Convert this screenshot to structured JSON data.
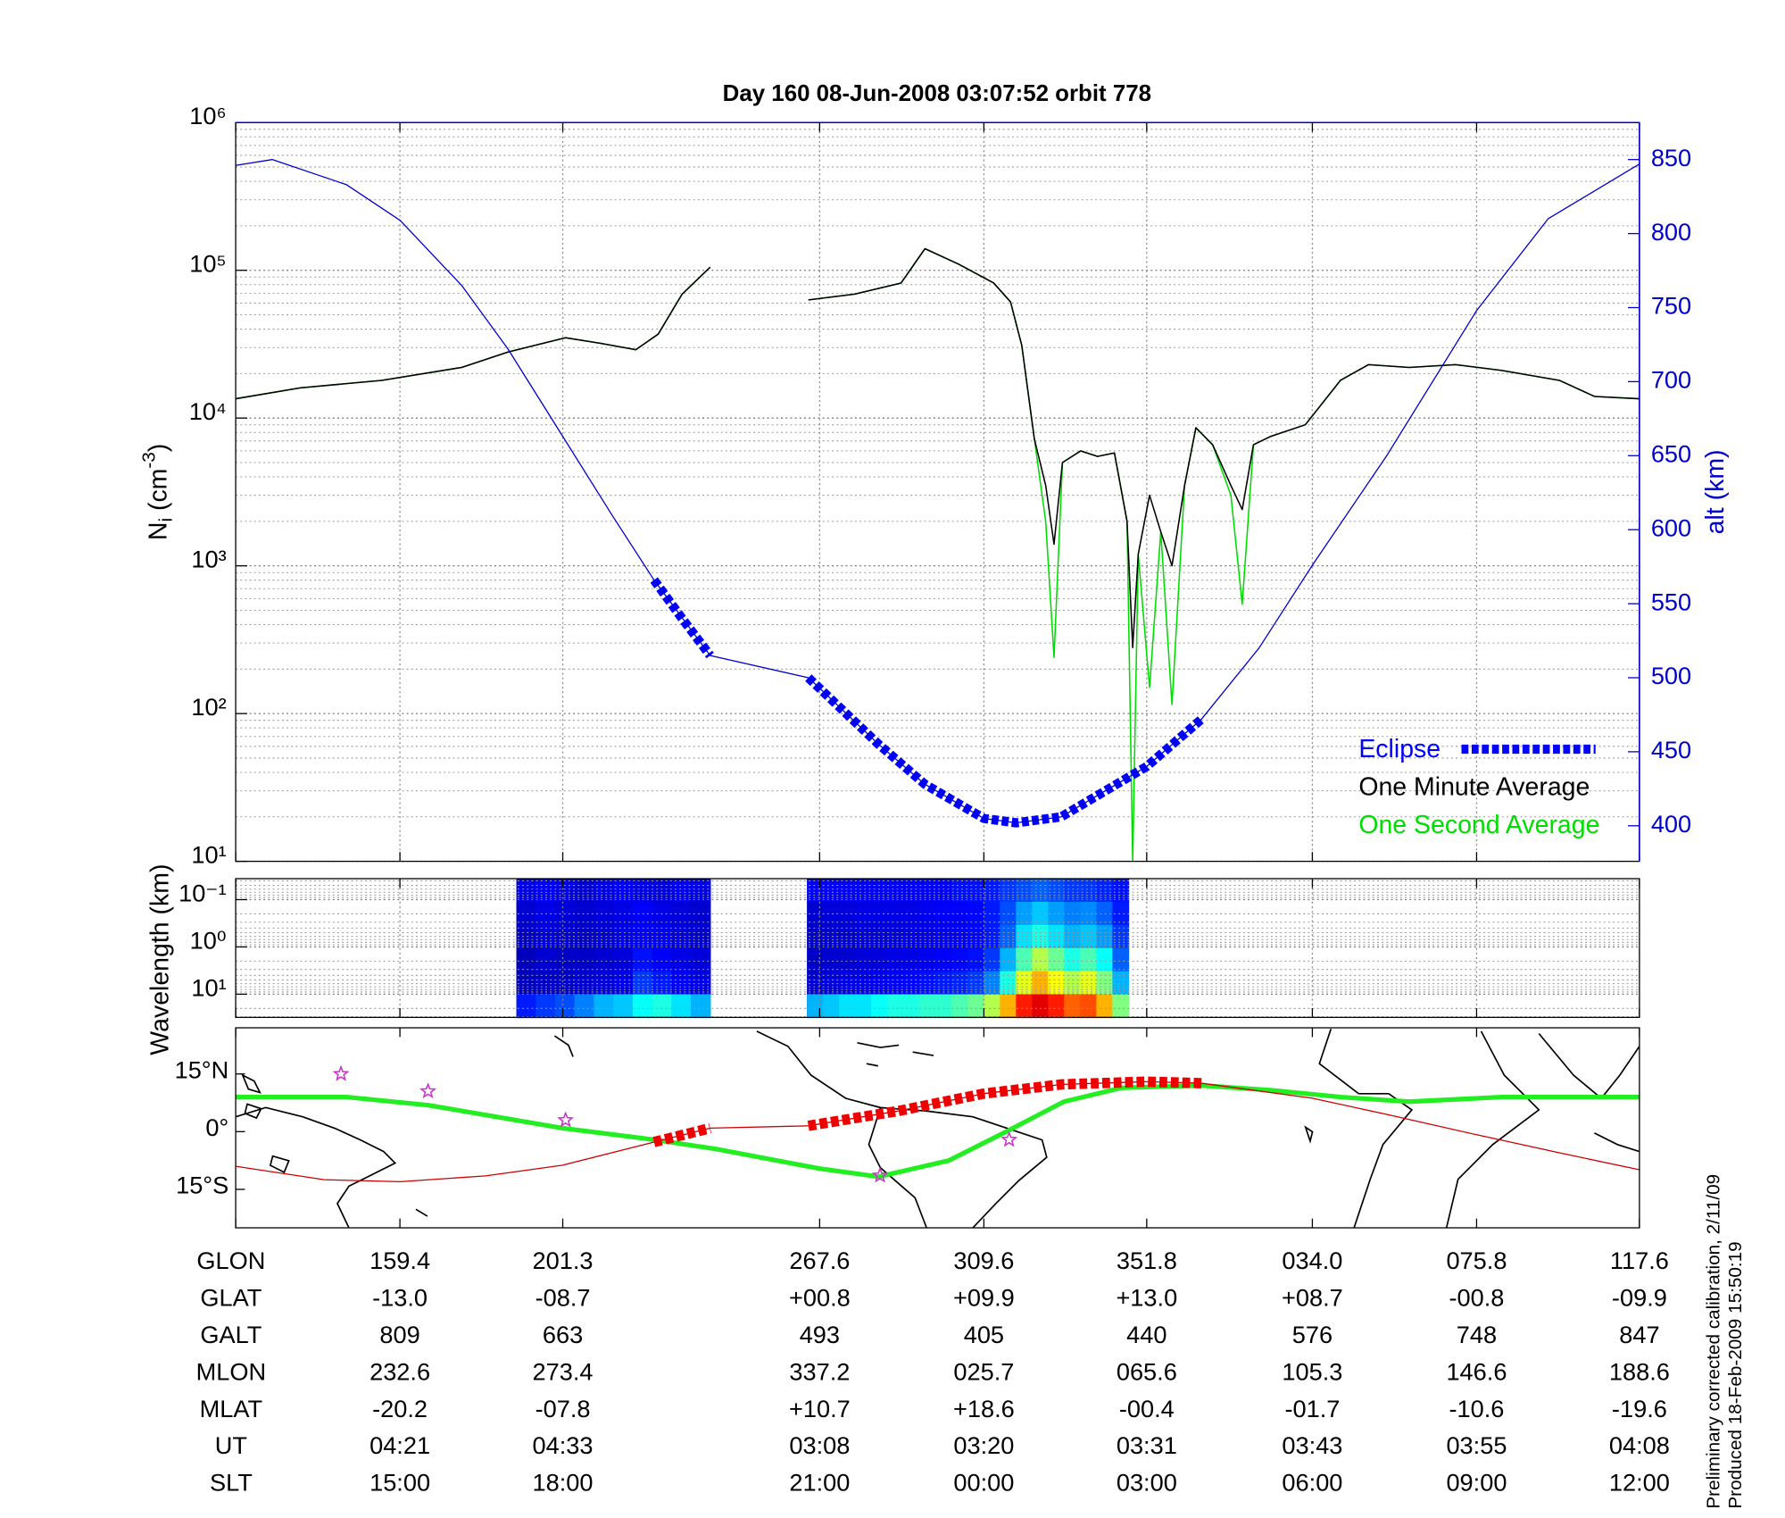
{
  "chart_data": [
    {
      "type": "line",
      "title": "Day 160  08-Jun-2008 03:07:52   orbit 778",
      "ylabel": {
        "base": "N",
        "sub": "i",
        "unit": " (cm",
        "sup": "-3",
        "close": ")"
      },
      "y2label": "alt (km)",
      "log": true,
      "ylim": [
        10,
        1000000
      ],
      "yticks": [
        {
          "value": 10,
          "label": "10¹"
        },
        {
          "value": 100,
          "label": "10²"
        },
        {
          "value": 1000,
          "label": "10³"
        },
        {
          "value": 10000,
          "label": "10⁴"
        },
        {
          "value": 100000,
          "label": "10⁵"
        },
        {
          "value": 1000000,
          "label": "10⁶"
        }
      ],
      "yminor": [
        20,
        30,
        40,
        50,
        60,
        70,
        80,
        90,
        200,
        300,
        400,
        500,
        600,
        700,
        800,
        900,
        2000,
        3000,
        4000,
        5000,
        6000,
        7000,
        8000,
        9000,
        20000,
        30000,
        40000,
        50000,
        60000,
        70000,
        80000,
        90000,
        200000,
        300000,
        400000,
        500000,
        600000,
        700000,
        800000,
        900000
      ],
      "y2lim": [
        376,
        875
      ],
      "y2ticks": [
        400,
        450,
        500,
        550,
        600,
        650,
        700,
        750,
        800,
        850
      ],
      "y2color": "#0000cc",
      "xlim": [
        0,
        100
      ],
      "xticks": [
        0,
        11.7,
        23.3,
        41.6,
        53.3,
        64.9,
        76.7,
        88.4,
        100
      ],
      "grid": true,
      "legend": "lower right",
      "series": [
        {
          "color": "#0000cc",
          "axis": "y2",
          "width": 1,
          "x": [
            0,
            2.6,
            7.9,
            11.7,
            16.1,
            19.4,
            23.3,
            26.8,
            29.8,
            33.8,
            40.8,
            41.6,
            45.8,
            49.1,
            53.3,
            55.6,
            58.8,
            64.9,
            68.8,
            72.9,
            76.7,
            82.0,
            88.4,
            93.5,
            100
          ],
          "values": [
            846,
            850,
            833,
            809,
            765,
            722,
            663,
            610,
            566,
            515,
            500,
            493,
            455,
            428,
            405,
            402,
            406,
            440,
            472,
            520,
            576,
            650,
            748,
            810,
            847
          ]
        },
        {
          "name": "Eclipse",
          "color": "#0000ff",
          "axis": "y2",
          "width": 8,
          "style": "dashed",
          "x": [
            29.8,
            31.8,
            33.8,
            37,
            40.8,
            45.8,
            49.1,
            53.3,
            55.6,
            58.8,
            64.9,
            68.8
          ],
          "values": [
            566,
            540,
            515,
            null,
            500,
            455,
            428,
            405,
            402,
            406,
            440,
            472
          ]
        },
        {
          "name": "One Minute Average",
          "color": "#000000",
          "width": 1.2,
          "x": [
            0,
            4.6,
            10.4,
            16.1,
            19.4,
            23.5,
            26.0,
            28.5,
            30.1,
            31.8,
            33.8,
            36,
            40.8,
            44.1,
            47.4,
            49.1,
            51.5,
            54.0,
            55.2,
            56.0,
            56.9,
            57.7,
            58.3,
            58.9,
            60.2,
            61.4,
            62.6,
            63.5,
            63.9,
            64.3,
            65.1,
            65.9,
            66.7,
            67.6,
            68.4,
            69.6,
            70.9,
            71.7,
            72.5,
            73.7,
            76.2,
            78.7,
            80.7,
            83.6,
            86.9,
            90.2,
            94.3,
            96.8,
            100
          ],
          "values": [
            13500,
            16000,
            18000,
            22000,
            28000,
            35000,
            32000,
            29000,
            37000,
            69000,
            105000,
            null,
            63000,
            69000,
            82000,
            140000,
            110000,
            82000,
            61000,
            31000,
            7200,
            3500,
            1400,
            5000,
            6000,
            5500,
            5800,
            2000,
            280,
            1200,
            3000,
            1700,
            1000,
            3500,
            8600,
            6600,
            3500,
            2400,
            6600,
            7500,
            9000,
            18000,
            23000,
            22000,
            23000,
            21000,
            18000,
            14000,
            13500
          ]
        },
        {
          "name": "One Second Average",
          "color": "#00dd00",
          "width": 1.2,
          "x": [
            0,
            4.6,
            10.4,
            16.1,
            19.4,
            23.5,
            26.0,
            28.5,
            30.1,
            31.8,
            33.8,
            36,
            40.8,
            44.1,
            47.4,
            49.1,
            51.5,
            54.0,
            55.2,
            56.0,
            56.9,
            57.7,
            58.3,
            58.9,
            60.2,
            61.4,
            62.6,
            63.5,
            63.9,
            64.3,
            65.1,
            65.9,
            66.7,
            67.6,
            68.4,
            69.6,
            70.9,
            71.7,
            72.5,
            73.7,
            76.2,
            78.7,
            80.7,
            83.6,
            86.9,
            90.2,
            94.3,
            96.8,
            100
          ],
          "values": [
            13500,
            16000,
            18000,
            22000,
            28000,
            35000,
            32000,
            29000,
            37000,
            69000,
            105000,
            null,
            63000,
            69000,
            82000,
            140000,
            110000,
            82000,
            61000,
            31000,
            7200,
            2000,
            240,
            5000,
            6000,
            5500,
            5800,
            2000,
            10,
            1200,
            150,
            1700,
            115,
            3500,
            8600,
            6600,
            3000,
            550,
            6600,
            7500,
            9000,
            18000,
            23000,
            22000,
            23000,
            21000,
            18000,
            14000,
            13500
          ]
        }
      ]
    },
    {
      "type": "heatmap",
      "ylabel": "Wavelength (km)",
      "log": true,
      "inverted": true,
      "ylim": [
        0.036,
        31
      ],
      "yticks": [
        {
          "value": 0.1,
          "label": "10⁻¹"
        },
        {
          "value": 1,
          "label": "10⁰"
        },
        {
          "value": 10,
          "label": "10¹"
        }
      ],
      "yminor": [
        0.04,
        0.05,
        0.06,
        0.07,
        0.08,
        0.09,
        0.2,
        0.3,
        0.4,
        0.5,
        0.6,
        0.7,
        0.8,
        0.9,
        2,
        3,
        4,
        5,
        6,
        7,
        8,
        9,
        20,
        30
      ],
      "xlim": [
        0,
        100
      ],
      "xticks": [
        0,
        11.7,
        23.3,
        41.6,
        53.3,
        64.9,
        76.7,
        88.4,
        100
      ],
      "grid": true,
      "blocks": [
        {
          "x": [
            20.0,
            33.8
          ],
          "intensity": [
            [
              0.1,
              0.12,
              0.1,
              0.08,
              0.1,
              0.12,
              0.1,
              0.09,
              0.11,
              0.1
            ],
            [
              0.08,
              0.1,
              0.09,
              0.08,
              0.09,
              0.1,
              0.12,
              0.1,
              0.09,
              0.08
            ],
            [
              0.07,
              0.09,
              0.08,
              0.07,
              0.08,
              0.1,
              0.12,
              0.11,
              0.09,
              0.08
            ],
            [
              0.06,
              0.08,
              0.07,
              0.07,
              0.08,
              0.09,
              0.14,
              0.12,
              0.1,
              0.09
            ],
            [
              0.06,
              0.07,
              0.07,
              0.08,
              0.09,
              0.1,
              0.18,
              0.15,
              0.12,
              0.1
            ],
            [
              0.15,
              0.18,
              0.2,
              0.25,
              0.3,
              0.32,
              0.38,
              0.4,
              0.35,
              0.3
            ]
          ]
        },
        {
          "x": [
            40.7,
            63.6
          ],
          "intensity": [
            [
              0.12,
              0.12,
              0.12,
              0.12,
              0.12,
              0.12,
              0.12,
              0.12,
              0.12,
              0.14,
              0.14,
              0.15,
              0.18,
              0.2,
              0.22,
              0.2,
              0.18,
              0.18,
              0.16,
              0.14
            ],
            [
              0.08,
              0.09,
              0.09,
              0.1,
              0.1,
              0.1,
              0.1,
              0.11,
              0.12,
              0.12,
              0.13,
              0.15,
              0.2,
              0.28,
              0.32,
              0.28,
              0.25,
              0.26,
              0.22,
              0.15
            ],
            [
              0.07,
              0.08,
              0.08,
              0.09,
              0.09,
              0.09,
              0.1,
              0.1,
              0.11,
              0.12,
              0.13,
              0.15,
              0.22,
              0.35,
              0.4,
              0.35,
              0.3,
              0.32,
              0.28,
              0.18
            ],
            [
              0.07,
              0.08,
              0.08,
              0.09,
              0.09,
              0.1,
              0.1,
              0.11,
              0.12,
              0.13,
              0.14,
              0.18,
              0.3,
              0.45,
              0.55,
              0.48,
              0.4,
              0.45,
              0.38,
              0.22
            ],
            [
              0.08,
              0.09,
              0.1,
              0.1,
              0.11,
              0.12,
              0.13,
              0.14,
              0.15,
              0.16,
              0.18,
              0.25,
              0.4,
              0.6,
              0.7,
              0.62,
              0.55,
              0.6,
              0.5,
              0.3
            ],
            [
              0.3,
              0.32,
              0.35,
              0.35,
              0.38,
              0.4,
              0.4,
              0.42,
              0.42,
              0.45,
              0.48,
              0.55,
              0.7,
              0.85,
              0.9,
              0.85,
              0.78,
              0.8,
              0.7,
              0.5
            ]
          ]
        }
      ]
    },
    {
      "type": "map",
      "ylim": [
        -25,
        27
      ],
      "yticks": [
        {
          "value": 15,
          "label": "15°N"
        },
        {
          "value": 0,
          "label": "0°"
        },
        {
          "value": -15,
          "label": "15°S"
        }
      ],
      "xlim": [
        0,
        100
      ],
      "xticks": [
        0,
        11.7,
        23.3,
        41.6,
        53.3,
        64.9,
        76.7,
        88.4,
        100
      ],
      "series": [
        {
          "color": "#22ee22",
          "width": 4,
          "x": [
            0,
            7.9,
            13.7,
            23.3,
            29.8,
            34.2,
            41.6,
            45.8,
            50.8,
            54.9,
            59.0,
            63.1,
            68.8,
            73.7,
            78.7,
            83.6,
            90.2,
            100
          ],
          "values": [
            9,
            9,
            6.9,
            0.9,
            -2.1,
            -4.5,
            -9.6,
            -11.7,
            -7.5,
            0,
            7.8,
            11.4,
            12,
            10.8,
            9,
            7.8,
            9,
            9
          ]
        },
        {
          "color": "#cc0000",
          "width": 1,
          "x": [
            0,
            6.3,
            11.7,
            17.8,
            23.3,
            29.8,
            33.8,
            40.8,
            47.4,
            53.3,
            58.9,
            64.9,
            68.8,
            76.7,
            82.0,
            88.4,
            94.3,
            100
          ],
          "values": [
            -9,
            -12.5,
            -13,
            -11.5,
            -8.7,
            -2.7,
            0.9,
            1.5,
            5.5,
            9.9,
            12.3,
            13,
            12.6,
            8.7,
            4.5,
            -0.8,
            -5.5,
            -9.9
          ]
        },
        {
          "color": "#ee0000",
          "width": 9,
          "style": "dashed",
          "x": [
            29.8,
            31.8,
            33.8,
            37,
            40.8,
            47.4,
            53.3,
            58.9,
            64.9,
            68.8
          ],
          "values": [
            -2.7,
            -0.9,
            0.9,
            null,
            1.5,
            5.5,
            9.9,
            12.3,
            13,
            12.6
          ]
        }
      ],
      "points": {
        "color": "#cc33cc",
        "x": [
          7.5,
          13.7,
          23.5,
          45.9,
          55.1
        ],
        "values": [
          15,
          10.5,
          3,
          -11.4,
          -2.1
        ]
      }
    }
  ],
  "table": {
    "rows": [
      {
        "label": "GLON",
        "values": [
          "159.4",
          "201.3",
          "267.6",
          "309.6",
          "351.8",
          "034.0",
          "075.8",
          "117.6"
        ]
      },
      {
        "label": "GLAT",
        "values": [
          "-13.0",
          "-08.7",
          "+00.8",
          "+09.9",
          "+13.0",
          "+08.7",
          "-00.8",
          "-09.9"
        ]
      },
      {
        "label": "GALT",
        "values": [
          "809",
          "663",
          "493",
          "405",
          "440",
          "576",
          "748",
          "847"
        ]
      },
      {
        "label": "MLON",
        "values": [
          "232.6",
          "273.4",
          "337.2",
          "025.7",
          "065.6",
          "105.3",
          "146.6",
          "188.6"
        ]
      },
      {
        "label": "MLAT",
        "values": [
          "-20.2",
          "-07.8",
          "+10.7",
          "+18.6",
          "-00.4",
          "-01.7",
          "-10.6",
          "-19.6"
        ]
      },
      {
        "label": "UT",
        "values": [
          "04:21",
          "04:33",
          "03:08",
          "03:20",
          "03:31",
          "03:43",
          "03:55",
          "04:08"
        ]
      },
      {
        "label": "SLT",
        "values": [
          "15:00",
          "18:00",
          "21:00",
          "00:00",
          "03:00",
          "06:00",
          "09:00",
          "12:00"
        ]
      }
    ]
  },
  "notes": [
    "Preliminary corrected calibration, 2/11/09",
    "Produced 18-Feb-2009 15:50:19"
  ]
}
